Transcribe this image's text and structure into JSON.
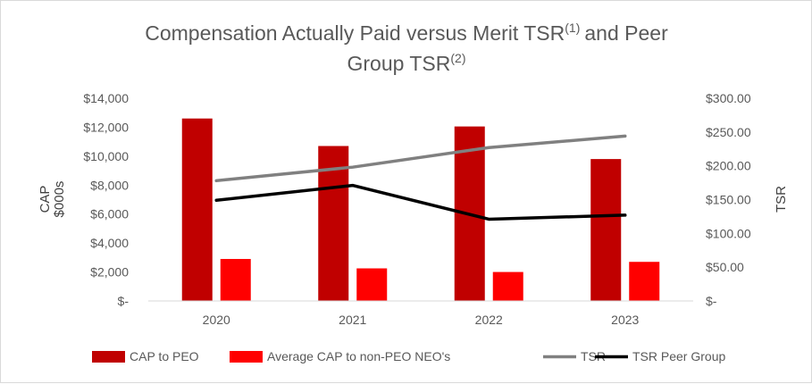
{
  "chart_data": {
    "type": "bar",
    "title": "Compensation Actually Paid versus Merit TSR",
    "title_line1": "Compensation Actually Paid versus Merit TSR",
    "title_sup1": "(1)",
    "title_and": "and Peer",
    "title_line2": "Group TSR",
    "title_sup2": "(2)",
    "categories": [
      "2020",
      "2021",
      "2022",
      "2023"
    ],
    "ylabel_left_line1": "CAP",
    "ylabel_left_line2": "$000s",
    "ylabel_right": "TSR",
    "ylim_left": [
      0,
      14000
    ],
    "ylim_right": [
      0,
      300
    ],
    "left_ticks": [
      "$-",
      "$2,000",
      "$4,000",
      "$6,000",
      "$8,000",
      "$10,000",
      "$12,000",
      "$14,000"
    ],
    "right_ticks": [
      "$-",
      "$50.00",
      "$100.00",
      "$150.00",
      "$200.00",
      "$250.00",
      "$300.00"
    ],
    "series": [
      {
        "name": "CAP to PEO",
        "kind": "bar",
        "axis": "left",
        "color": "#c00000",
        "values": [
          12600,
          10700,
          12050,
          9800
        ]
      },
      {
        "name": "Average CAP to  non-PEO NEO's",
        "kind": "bar",
        "axis": "left",
        "color": "#ff0000",
        "values": [
          2900,
          2250,
          2000,
          2700
        ]
      },
      {
        "name": "TSR",
        "kind": "line",
        "axis": "right",
        "color": "#808080",
        "values": [
          178,
          198,
          227,
          244
        ]
      },
      {
        "name": "TSR Peer Group",
        "kind": "line",
        "axis": "right",
        "color": "#000000",
        "values": [
          149,
          171,
          121,
          127
        ]
      }
    ]
  }
}
